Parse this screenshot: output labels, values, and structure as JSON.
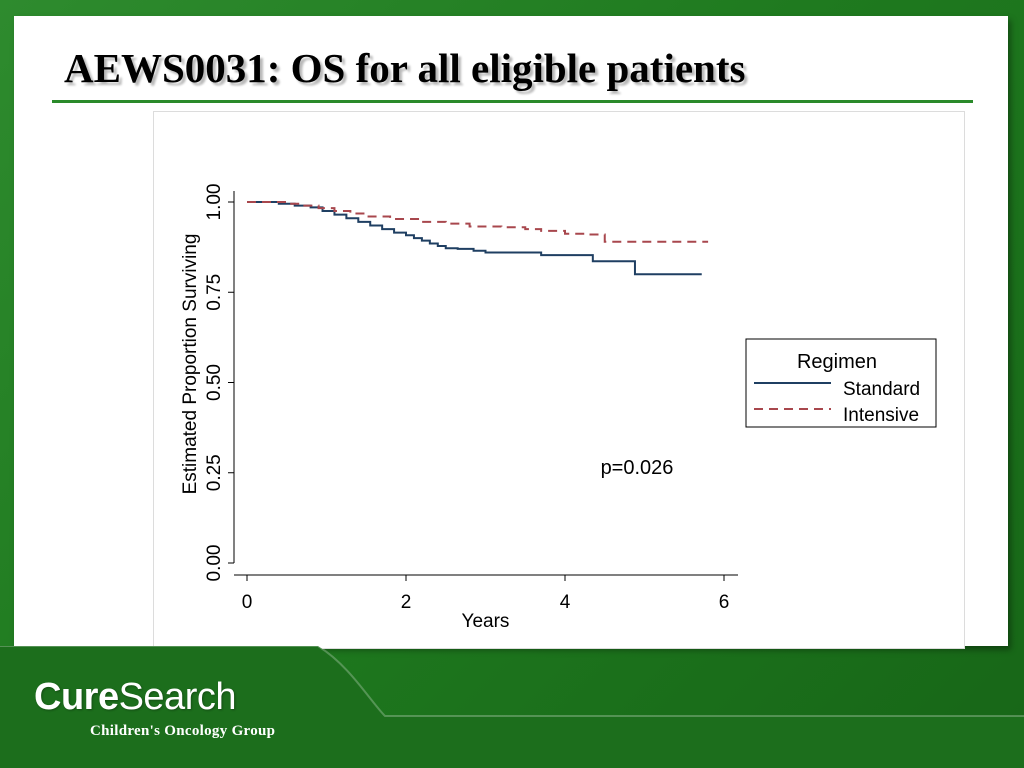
{
  "slide": {
    "title": "AEWS0031: OS for all eligible patients"
  },
  "brand": {
    "name_bold": "Cure",
    "name_regular": "Search",
    "tagline": "Children's Oncology Group"
  },
  "colors": {
    "background_green": "#1f7a1f",
    "title_rule": "#2a8a2a",
    "standard_line": "#1f3f62",
    "intensive_line": "#a8474d"
  },
  "chart_data": {
    "type": "line",
    "subtype": "kaplan-meier step",
    "xlabel": "Years",
    "ylabel": "Estimated Proportion Surviving",
    "xlim": [
      0,
      6
    ],
    "ylim": [
      0,
      1
    ],
    "x_ticks": [
      "0",
      "2",
      "4",
      "6"
    ],
    "y_ticks": [
      "0.00",
      "0.25",
      "0.50",
      "0.75",
      "1.00"
    ],
    "grid": false,
    "legend": {
      "title": "Regimen",
      "position": "right",
      "entries": [
        "Standard",
        "Intensive"
      ]
    },
    "annotation": "p=0.026",
    "series": [
      {
        "name": "Standard",
        "style": "solid",
        "color": "#1f3f62",
        "x": [
          0,
          0.4,
          0.6,
          0.8,
          0.95,
          1.1,
          1.25,
          1.4,
          1.55,
          1.7,
          1.85,
          2.0,
          2.1,
          2.2,
          2.3,
          2.4,
          2.5,
          2.65,
          2.85,
          3.0,
          3.3,
          3.7,
          4.0,
          4.35,
          4.88,
          5.72
        ],
        "y": [
          1.0,
          0.995,
          0.99,
          0.985,
          0.975,
          0.965,
          0.955,
          0.945,
          0.935,
          0.925,
          0.915,
          0.908,
          0.9,
          0.893,
          0.885,
          0.878,
          0.872,
          0.87,
          0.865,
          0.86,
          0.86,
          0.853,
          0.853,
          0.836,
          0.8,
          0.8
        ]
      },
      {
        "name": "Intensive",
        "style": "dashed",
        "color": "#a8474d",
        "x": [
          0,
          0.5,
          0.7,
          0.9,
          1.1,
          1.3,
          1.5,
          1.8,
          2.2,
          2.5,
          2.8,
          3.2,
          3.5,
          3.7,
          4.0,
          4.3,
          4.5,
          5.2,
          5.8
        ],
        "y": [
          1.0,
          0.995,
          0.99,
          0.983,
          0.975,
          0.968,
          0.96,
          0.953,
          0.945,
          0.94,
          0.932,
          0.93,
          0.925,
          0.92,
          0.912,
          0.91,
          0.89,
          0.89,
          0.89
        ]
      }
    ]
  }
}
